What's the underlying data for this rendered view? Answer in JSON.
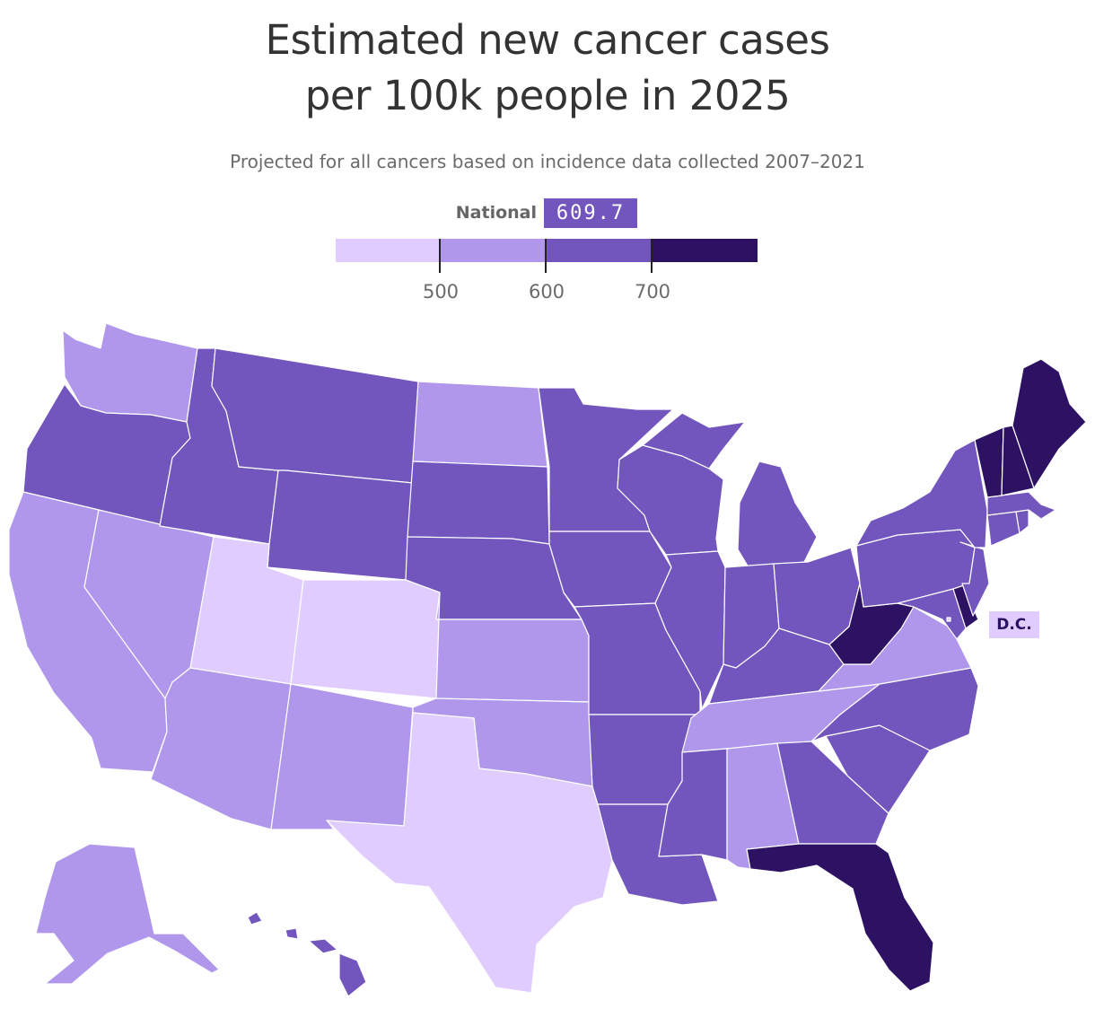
{
  "title_line1": "Estimated new cancer cases",
  "title_line2": "per 100k people in 2025",
  "subtitle": "Projected for all cancers based on incidence data collected 2007–2021",
  "national": {
    "label": "National",
    "value": "609.7"
  },
  "legend": {
    "ticks": [
      "500",
      "600",
      "700"
    ],
    "bins": [
      {
        "max": 500,
        "color": "#e0ccff"
      },
      {
        "min": 500,
        "max": 600,
        "color": "#b097eb"
      },
      {
        "min": 600,
        "max": 700,
        "color": "#7255bd"
      },
      {
        "min": 700,
        "color": "#2d1163"
      }
    ]
  },
  "dc_label": "D.C.",
  "states": {
    "WA": "#b097eb",
    "OR": "#7255bd",
    "CA": "#b097eb",
    "NV": "#b097eb",
    "ID": "#7255bd",
    "MT": "#7255bd",
    "WY": "#7255bd",
    "UT": "#e0ccff",
    "CO": "#e0ccff",
    "AZ": "#b097eb",
    "NM": "#b097eb",
    "ND": "#b097eb",
    "SD": "#7255bd",
    "NE": "#7255bd",
    "KS": "#b097eb",
    "OK": "#b097eb",
    "TX": "#e0ccff",
    "MN": "#7255bd",
    "IA": "#7255bd",
    "MO": "#7255bd",
    "AR": "#7255bd",
    "LA": "#7255bd",
    "WI": "#7255bd",
    "IL": "#7255bd",
    "MI": "#7255bd",
    "IN": "#7255bd",
    "OH": "#7255bd",
    "KY": "#7255bd",
    "TN": "#b097eb",
    "MS": "#7255bd",
    "AL": "#b097eb",
    "GA": "#7255bd",
    "FL": "#2d1163",
    "SC": "#7255bd",
    "NC": "#7255bd",
    "VA": "#b097eb",
    "WV": "#2d1163",
    "MD": "#7255bd",
    "DE": "#2d1163",
    "PA": "#7255bd",
    "NJ": "#7255bd",
    "NY": "#7255bd",
    "CT": "#7255bd",
    "RI": "#7255bd",
    "MA": "#7255bd",
    "VT": "#2d1163",
    "NH": "#2d1163",
    "ME": "#2d1163",
    "AK": "#b097eb",
    "HI": "#7255bd",
    "DC": "#e0ccff"
  }
}
